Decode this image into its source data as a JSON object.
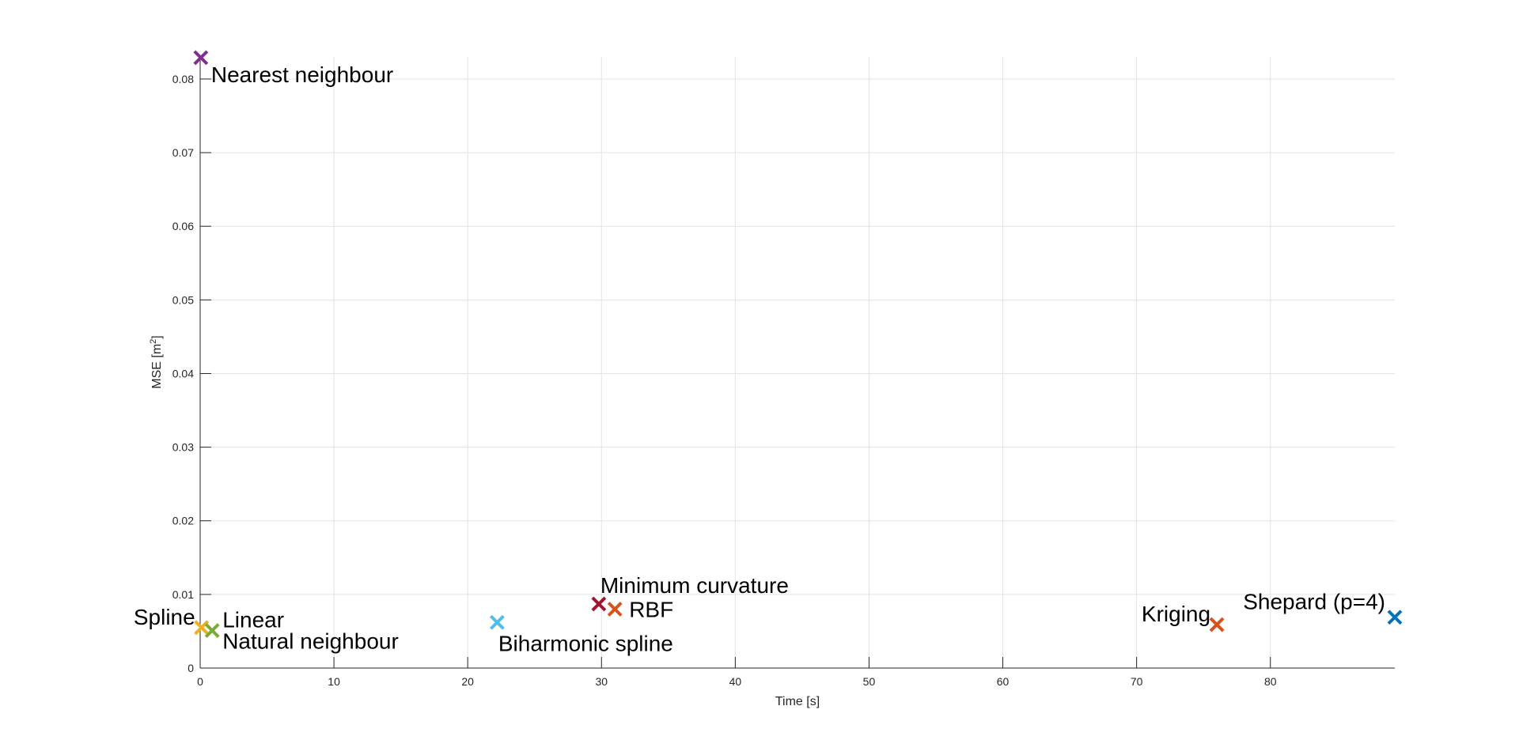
{
  "chart_data": {
    "type": "scatter",
    "title": "",
    "xlabel": "Time [s]",
    "ylabel_main": "MSE [m",
    "ylabel_sup": "2",
    "ylabel_end": "]",
    "xlim": [
      0,
      89.3
    ],
    "ylim": [
      0,
      0.083
    ],
    "x_ticks": [
      0,
      10,
      20,
      30,
      40,
      50,
      60,
      70,
      80
    ],
    "x_tick_labels": [
      "0",
      "10",
      "20",
      "30",
      "40",
      "50",
      "60",
      "70",
      "80"
    ],
    "y_ticks": [
      0,
      0.01,
      0.02,
      0.03,
      0.04,
      0.05,
      0.06,
      0.07,
      0.08
    ],
    "y_tick_labels": [
      "0",
      "0.01",
      "0.02",
      "0.03",
      "0.04",
      "0.05",
      "0.06",
      "0.07",
      "0.08"
    ],
    "grid": true,
    "marker": "x",
    "points": [
      {
        "label": "Nearest neighbour",
        "x": 0.05,
        "y": 0.0829,
        "color": "#7E2F8E",
        "label_anchor": "below-right"
      },
      {
        "label": "Spline",
        "x": 0.1,
        "y": 0.0055,
        "color": "#EDB120",
        "label_anchor": "left"
      },
      {
        "label": "Linear",
        "x": 0.9,
        "y": 0.0051,
        "color": "#77AC30",
        "label_anchor": "upper-right"
      },
      {
        "label": "Natural neighbour",
        "x": 0.9,
        "y": 0.0051,
        "color": "#77AC30",
        "label_anchor": "lower-right"
      },
      {
        "label": "Biharmonic spline",
        "x": 22.2,
        "y": 0.0062,
        "color": "#4DBEEE",
        "label_anchor": "below"
      },
      {
        "label": "Minimum curvature",
        "x": 29.8,
        "y": 0.0087,
        "color": "#A2142F",
        "label_anchor": "above"
      },
      {
        "label": "RBF",
        "x": 31.0,
        "y": 0.008,
        "color": "#D95319",
        "label_anchor": "right"
      },
      {
        "label": "Kriging",
        "x": 76.0,
        "y": 0.0059,
        "color": "#D95319",
        "label_anchor": "left"
      },
      {
        "label": "Shepard (p=4)",
        "x": 89.3,
        "y": 0.0069,
        "color": "#0072BD",
        "label_anchor": "above-left"
      }
    ]
  }
}
